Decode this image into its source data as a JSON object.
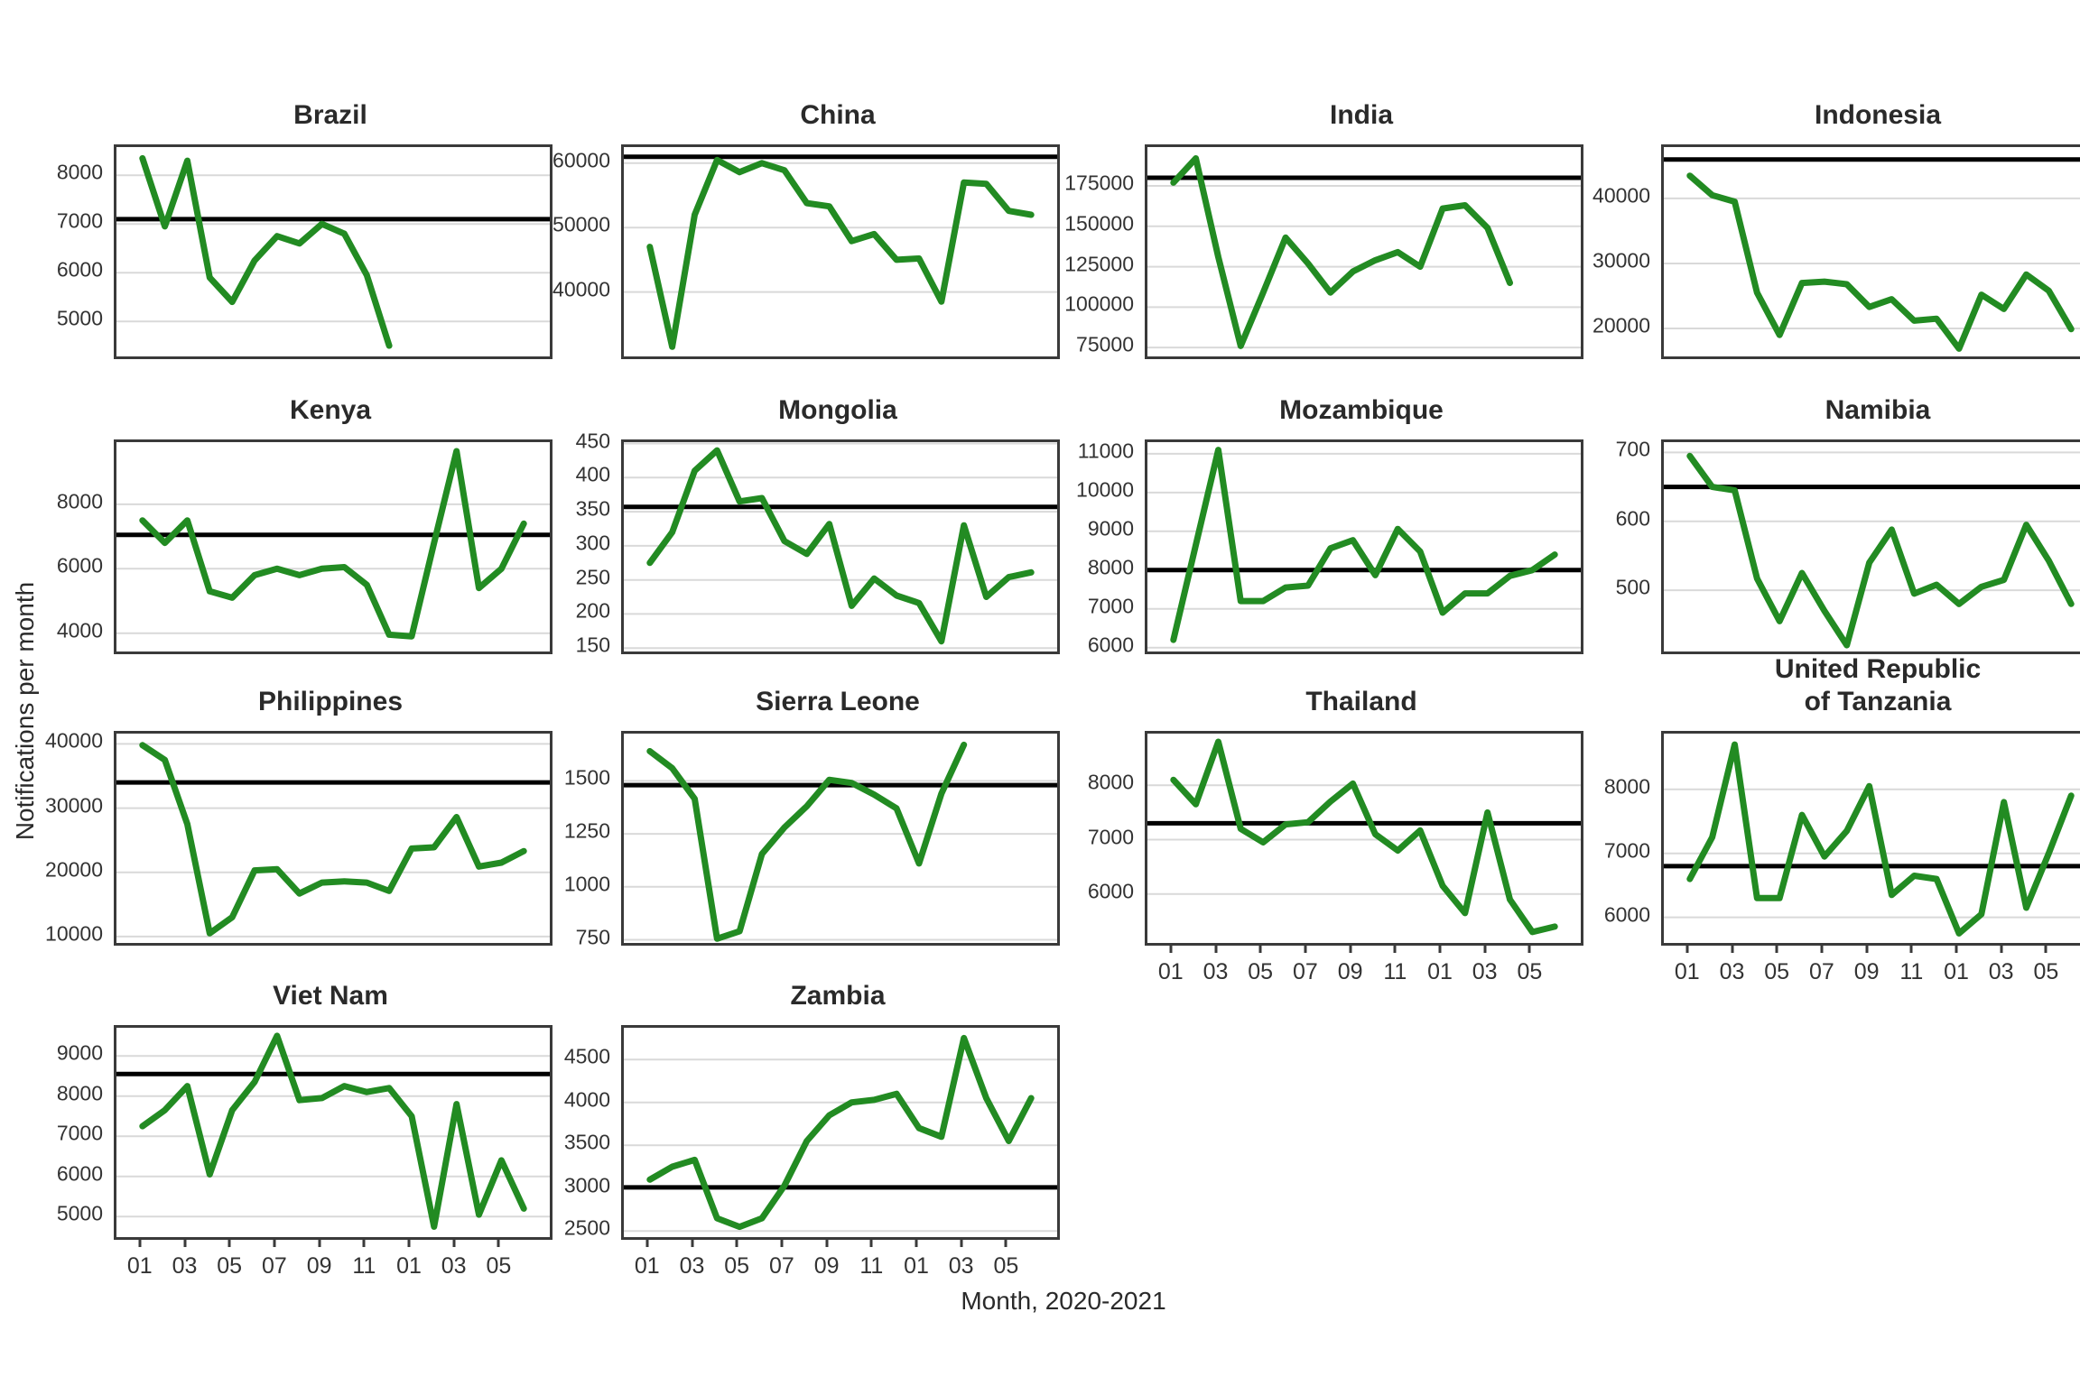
{
  "figure": {
    "ylabel": "Notifications per month",
    "xlabel": "Month, 2020-2021",
    "x_tick_labels": [
      "01",
      "03",
      "05",
      "07",
      "09",
      "11",
      "01",
      "03",
      "05"
    ],
    "line_color": "#228B22",
    "reference_line_color": "#000000",
    "grid_color": "#d9d9d9",
    "months_axis": "Jan 2020 - Jun 2021"
  },
  "chart_data": [
    {
      "type": "line",
      "title": "Brazil",
      "yticks": [
        5000,
        6000,
        7000,
        8000
      ],
      "ylim": [
        4280,
        8580
      ],
      "baseline": 7100,
      "values": [
        8350,
        6950,
        8300,
        5900,
        5400,
        6250,
        6750,
        6600,
        7000,
        6800,
        5950,
        4500
      ]
    },
    {
      "type": "line",
      "title": "China",
      "yticks": [
        40000,
        50000,
        60000
      ],
      "ylim": [
        30000,
        62500
      ],
      "baseline": 61000,
      "values": [
        47000,
        31500,
        52000,
        60500,
        58600,
        60000,
        58900,
        53800,
        53300,
        47900,
        49000,
        45000,
        45200,
        38500,
        57000,
        56800,
        52600,
        52000
      ]
    },
    {
      "type": "line",
      "title": "India",
      "yticks": [
        75000,
        100000,
        125000,
        150000,
        175000
      ],
      "ylim": [
        69500,
        199000
      ],
      "baseline": 180000,
      "values": [
        177000,
        192000,
        131000,
        76000,
        109000,
        143000,
        127000,
        109000,
        122000,
        129000,
        134000,
        125000,
        161000,
        163000,
        149000,
        115000
      ]
    },
    {
      "type": "line",
      "title": "Indonesia",
      "yticks": [
        20000,
        30000,
        40000
      ],
      "ylim": [
        15700,
        47900
      ],
      "baseline": 46000,
      "values": [
        43500,
        40500,
        39500,
        25500,
        19000,
        27000,
        27200,
        26800,
        23300,
        24500,
        21200,
        21500,
        16900,
        25200,
        23000,
        28300,
        25800,
        19900
      ]
    },
    {
      "type": "line",
      "title": "Kenya",
      "yticks": [
        4000,
        6000,
        8000
      ],
      "ylim": [
        3430,
        9930
      ],
      "baseline": 7050,
      "values": [
        7500,
        6800,
        7500,
        5300,
        5100,
        5800,
        6000,
        5800,
        6000,
        6050,
        5500,
        3950,
        3900,
        6800,
        9650,
        5400,
        6000,
        7400
      ]
    },
    {
      "type": "line",
      "title": "Mongolia",
      "yticks": [
        150,
        200,
        250,
        300,
        350,
        400,
        450
      ],
      "ylim": [
        145,
        452
      ],
      "baseline": 357,
      "values": [
        275,
        320,
        410,
        440,
        365,
        370,
        307,
        288,
        332,
        212,
        252,
        227,
        216,
        160,
        330,
        225,
        254,
        261
      ]
    },
    {
      "type": "line",
      "title": "Mozambique",
      "yticks": [
        6000,
        7000,
        8000,
        9000,
        10000,
        11000
      ],
      "ylim": [
        5900,
        11300
      ],
      "baseline": 8000,
      "values": [
        6200,
        8650,
        11100,
        7200,
        7200,
        7550,
        7600,
        8560,
        8770,
        7870,
        9060,
        8480,
        6900,
        7400,
        7400,
        7850,
        8000,
        8400
      ]
    },
    {
      "type": "line",
      "title": "Namibia",
      "yticks": [
        500,
        600,
        700
      ],
      "ylim": [
        411,
        715
      ],
      "baseline": 650,
      "values": [
        695,
        650,
        645,
        517,
        455,
        525,
        470,
        420,
        540,
        588,
        495,
        508,
        480,
        505,
        515,
        595,
        543,
        480
      ]
    },
    {
      "type": "line",
      "title": "Philippines",
      "yticks": [
        10000,
        20000,
        30000,
        40000
      ],
      "ylim": [
        9000,
        41600
      ],
      "baseline": 34000,
      "values": [
        39800,
        37500,
        27500,
        10500,
        13000,
        20300,
        20500,
        16700,
        18400,
        18600,
        18400,
        17100,
        23700,
        23900,
        28600,
        20900,
        21500,
        23300
      ]
    },
    {
      "type": "line",
      "title": "Sierra Leone",
      "yticks": [
        750,
        1000,
        1250,
        1500
      ],
      "ylim": [
        735,
        1723
      ],
      "baseline": 1480,
      "values": [
        1640,
        1560,
        1415,
        755,
        790,
        1155,
        1280,
        1380,
        1505,
        1490,
        1435,
        1370,
        1110,
        1440,
        1670
      ]
    },
    {
      "type": "line",
      "title": "Thailand",
      "yticks": [
        6000,
        7000,
        8000
      ],
      "ylim": [
        5100,
        8950
      ],
      "baseline": 7300,
      "values": [
        8100,
        7650,
        8800,
        7200,
        6950,
        7280,
        7320,
        7700,
        8030,
        7100,
        6800,
        7170,
        6150,
        5650,
        7500,
        5900,
        5300,
        5400
      ]
    },
    {
      "type": "line",
      "title": "United Republic\nof Tanzania",
      "yticks": [
        6000,
        7000,
        8000
      ],
      "ylim": [
        5600,
        8870
      ],
      "baseline": 6800,
      "values": [
        6600,
        7250,
        8700,
        6300,
        6300,
        7600,
        6950,
        7350,
        8050,
        6350,
        6650,
        6600,
        5750,
        6050,
        7800,
        6150,
        7000,
        7900
      ]
    },
    {
      "type": "line",
      "title": "Viet Nam",
      "yticks": [
        5000,
        6000,
        7000,
        8000,
        9000
      ],
      "ylim": [
        4490,
        9700
      ],
      "baseline": 8550,
      "values": [
        7250,
        7650,
        8250,
        6050,
        7650,
        8350,
        9500,
        7900,
        7950,
        8250,
        8100,
        8200,
        7500,
        4750,
        7800,
        5050,
        6400,
        5200
      ]
    },
    {
      "type": "line",
      "title": "Zambia",
      "yticks": [
        2500,
        3000,
        3500,
        4000,
        4500
      ],
      "ylim": [
        2430,
        4870
      ],
      "baseline": 3010,
      "values": [
        3100,
        3250,
        3330,
        2650,
        2550,
        2650,
        3030,
        3550,
        3850,
        4000,
        4030,
        4100,
        3700,
        3600,
        4750,
        4050,
        3550,
        4050
      ]
    }
  ]
}
